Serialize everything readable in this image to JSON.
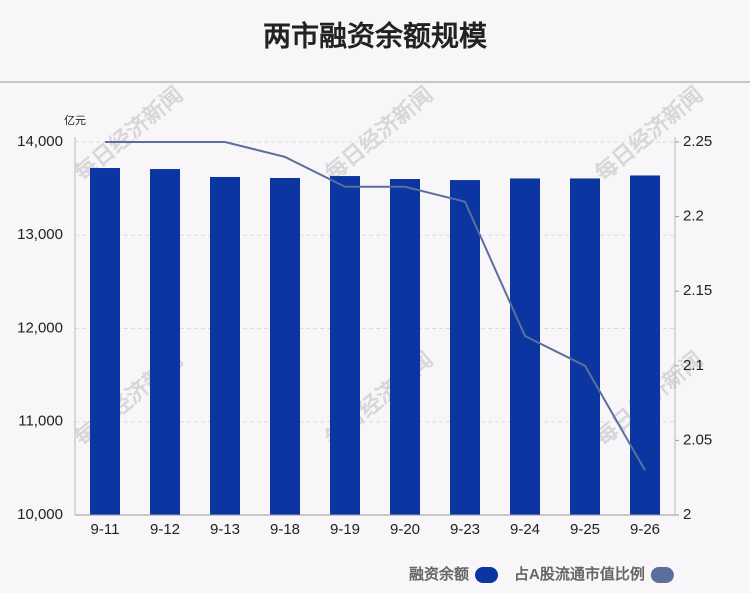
{
  "chart_data": {
    "type": "bar-line",
    "title": "两市融资余额规模",
    "y_unit": "亿元",
    "watermark": "每日经济新闻",
    "categories": [
      "9-11",
      "9-12",
      "9-13",
      "9-18",
      "9-19",
      "9-20",
      "9-23",
      "9-24",
      "9-25",
      "9-26"
    ],
    "series": [
      {
        "name": "融资余额",
        "type": "bar",
        "color": "#0b35a0",
        "values": [
          13721,
          13710,
          13625,
          13614,
          13635,
          13603,
          13592,
          13609,
          13609,
          13641
        ]
      },
      {
        "name": "占A股流通市值比例",
        "type": "line",
        "axis": "y2",
        "color": "#5b6f9d",
        "values": [
          2.25,
          2.25,
          2.25,
          2.24,
          2.22,
          2.22,
          2.21,
          2.12,
          2.1,
          2.03
        ]
      }
    ],
    "ylim": [
      10000,
      14000
    ],
    "yticks": [
      {
        "value": 10000,
        "label": "10,000"
      },
      {
        "value": 11000,
        "label": "11,000"
      },
      {
        "value": 12000,
        "label": "12,000"
      },
      {
        "value": 13000,
        "label": "13,000"
      },
      {
        "value": 14000,
        "label": "14,000"
      }
    ],
    "y2lim": [
      2,
      2.25
    ],
    "y2ticks": [
      2,
      2.05,
      2.1,
      2.15,
      2.2,
      2.25
    ],
    "grid": true
  }
}
